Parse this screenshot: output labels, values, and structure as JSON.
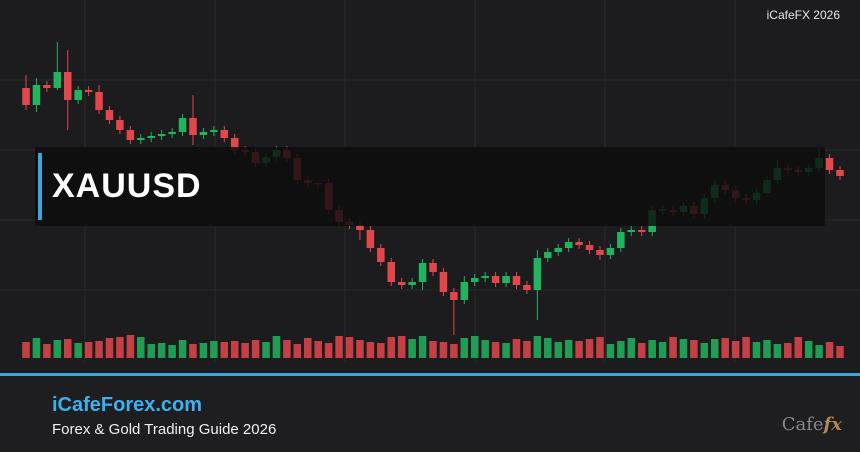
{
  "header": {
    "brand_mark": "iCafeFX 2026"
  },
  "banner": {
    "symbol": "XAUUSD"
  },
  "footer": {
    "site": "iCafeForex.com",
    "tagline": "Forex & Gold Trading Guide 2026",
    "logo": [
      "Cafe",
      "fx"
    ]
  },
  "chart_data": {
    "type": "candlestick",
    "up_color": "#22b35e",
    "down_color": "#e2474b",
    "open": [
      272,
      255,
      275,
      272,
      288,
      260,
      270,
      268,
      250,
      240,
      230,
      220,
      222,
      224,
      226,
      228,
      242,
      225,
      228,
      230,
      222,
      210,
      208,
      197,
      203,
      210,
      202,
      180,
      177,
      177,
      150,
      138,
      135,
      130,
      112,
      98,
      78,
      75,
      78,
      97,
      88,
      68,
      60,
      78,
      82,
      84,
      77,
      84,
      75,
      70,
      102,
      108,
      112,
      118,
      115,
      110,
      105,
      112,
      128,
      130,
      128,
      150,
      150,
      148,
      154,
      146,
      162,
      175,
      170,
      162,
      160,
      167,
      180,
      192,
      190,
      188,
      192,
      202,
      190
    ],
    "high": [
      285,
      282,
      279,
      318,
      310,
      274,
      274,
      275,
      254,
      244,
      234,
      226,
      228,
      230,
      232,
      246,
      265,
      232,
      234,
      234,
      226,
      214,
      212,
      207,
      214,
      214,
      206,
      184,
      180,
      181,
      154,
      142,
      139,
      134,
      116,
      102,
      82,
      82,
      101,
      101,
      92,
      72,
      84,
      86,
      88,
      88,
      88,
      88,
      79,
      110,
      112,
      116,
      122,
      122,
      119,
      114,
      116,
      132,
      134,
      134,
      154,
      154,
      154,
      158,
      158,
      166,
      179,
      179,
      174,
      166,
      171,
      184,
      200,
      196,
      194,
      196,
      212,
      206,
      194
    ],
    "low": [
      250,
      248,
      268,
      270,
      230,
      256,
      264,
      246,
      236,
      226,
      216,
      216,
      218,
      220,
      222,
      224,
      215,
      221,
      224,
      218,
      206,
      204,
      193,
      193,
      199,
      198,
      176,
      173,
      172,
      146,
      134,
      131,
      120,
      108,
      94,
      74,
      71,
      71,
      70,
      84,
      64,
      25,
      56,
      74,
      78,
      73,
      73,
      71,
      66,
      40,
      98,
      104,
      108,
      111,
      106,
      100,
      101,
      108,
      124,
      124,
      124,
      146,
      144,
      144,
      142,
      142,
      158,
      166,
      158,
      156,
      156,
      163,
      176,
      186,
      184,
      184,
      188,
      186,
      180
    ],
    "close": [
      255,
      275,
      272,
      288,
      260,
      270,
      268,
      250,
      240,
      230,
      220,
      222,
      224,
      226,
      228,
      242,
      225,
      228,
      230,
      222,
      210,
      208,
      197,
      203,
      210,
      202,
      180,
      177,
      176,
      150,
      138,
      135,
      130,
      112,
      98,
      78,
      75,
      78,
      97,
      88,
      68,
      60,
      78,
      82,
      84,
      77,
      84,
      75,
      70,
      102,
      108,
      112,
      118,
      115,
      110,
      105,
      112,
      128,
      130,
      128,
      150,
      151,
      148,
      154,
      146,
      162,
      175,
      170,
      162,
      160,
      167,
      180,
      192,
      190,
      188,
      192,
      202,
      190,
      184
    ],
    "volume": [
      16,
      20,
      14,
      18,
      19,
      15,
      16,
      17,
      20,
      21,
      23,
      21,
      14,
      15,
      13,
      18,
      14,
      15,
      17,
      16,
      17,
      15,
      18,
      16,
      22,
      18,
      14,
      20,
      17,
      15,
      22,
      21,
      18,
      16,
      15,
      21,
      22,
      19,
      22,
      17,
      16,
      14,
      20,
      22,
      18,
      16,
      15,
      19,
      17,
      22,
      20,
      16,
      18,
      17,
      19,
      21,
      14,
      17,
      20,
      15,
      18,
      16,
      21,
      19,
      18,
      15,
      19,
      20,
      17,
      21,
      16,
      18,
      14,
      15,
      21,
      17,
      13,
      16,
      12
    ]
  }
}
